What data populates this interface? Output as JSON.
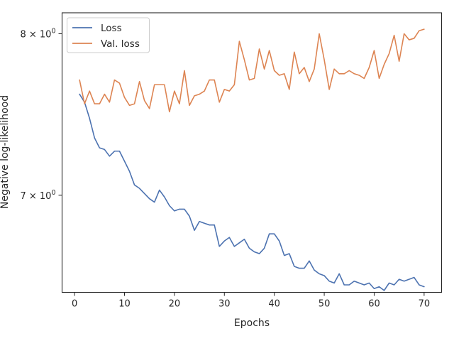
{
  "chart_data": {
    "type": "line",
    "title": "",
    "xlabel": "Epochs",
    "ylabel": "Negative log-likelihood",
    "yscale": "log",
    "xlim": [
      -2.5,
      73.5
    ],
    "ylim": [
      6.46,
      8.14
    ],
    "xticks": [
      0,
      10,
      20,
      30,
      40,
      50,
      60,
      70
    ],
    "xtick_labels": [
      "0",
      "10",
      "20",
      "30",
      "40",
      "50",
      "60",
      "70"
    ],
    "yticks": [
      7,
      8
    ],
    "ytick_labels": [
      "7 × 10",
      "8 × 10"
    ],
    "ytick_exponent": "0",
    "legend_position": "upper-left",
    "grid": false,
    "series": [
      {
        "name": "Loss",
        "color": "#4c72b0",
        "x": [
          1,
          2,
          3,
          4,
          5,
          6,
          7,
          8,
          9,
          10,
          11,
          12,
          13,
          14,
          15,
          16,
          17,
          18,
          19,
          20,
          21,
          22,
          23,
          24,
          25,
          26,
          27,
          28,
          29,
          30,
          31,
          32,
          33,
          34,
          35,
          36,
          37,
          38,
          39,
          40,
          41,
          42,
          43,
          44,
          45,
          46,
          47,
          48,
          49,
          50,
          51,
          52,
          53,
          54,
          55,
          56,
          57,
          58,
          59,
          60,
          61,
          62,
          63,
          64,
          65,
          66,
          67,
          68,
          69,
          70
        ],
        "values": [
          7.61,
          7.56,
          7.46,
          7.34,
          7.28,
          7.27,
          7.23,
          7.26,
          7.26,
          7.2,
          7.14,
          7.06,
          7.04,
          7.01,
          6.98,
          6.96,
          7.03,
          6.99,
          6.94,
          6.91,
          6.92,
          6.92,
          6.88,
          6.8,
          6.85,
          6.84,
          6.83,
          6.83,
          6.71,
          6.74,
          6.76,
          6.71,
          6.73,
          6.75,
          6.7,
          6.68,
          6.67,
          6.7,
          6.78,
          6.78,
          6.74,
          6.66,
          6.67,
          6.6,
          6.59,
          6.59,
          6.63,
          6.58,
          6.56,
          6.55,
          6.52,
          6.51,
          6.56,
          6.5,
          6.5,
          6.52,
          6.51,
          6.5,
          6.51,
          6.48,
          6.49,
          6.47,
          6.51,
          6.5,
          6.53,
          6.52,
          6.53,
          6.54,
          6.5,
          6.49
        ]
      },
      {
        "name": "Val. loss",
        "color": "#dd8452",
        "x": [
          1,
          2,
          3,
          4,
          5,
          6,
          7,
          8,
          9,
          10,
          11,
          12,
          13,
          14,
          15,
          16,
          17,
          18,
          19,
          20,
          21,
          22,
          23,
          24,
          25,
          26,
          27,
          28,
          29,
          30,
          31,
          32,
          33,
          34,
          35,
          36,
          37,
          38,
          39,
          40,
          41,
          42,
          43,
          44,
          45,
          46,
          47,
          48,
          49,
          50,
          51,
          52,
          53,
          54,
          55,
          56,
          57,
          58,
          59,
          60,
          61,
          62,
          63,
          64,
          65,
          66,
          67,
          68,
          69,
          70
        ],
        "values": [
          7.7,
          7.55,
          7.63,
          7.55,
          7.55,
          7.61,
          7.56,
          7.7,
          7.68,
          7.59,
          7.54,
          7.55,
          7.69,
          7.57,
          7.52,
          7.67,
          7.67,
          7.67,
          7.5,
          7.63,
          7.55,
          7.76,
          7.54,
          7.6,
          7.61,
          7.63,
          7.7,
          7.7,
          7.56,
          7.64,
          7.63,
          7.67,
          7.95,
          7.83,
          7.7,
          7.71,
          7.9,
          7.77,
          7.89,
          7.76,
          7.73,
          7.74,
          7.64,
          7.88,
          7.74,
          7.78,
          7.69,
          7.77,
          8.0,
          7.83,
          7.64,
          7.77,
          7.74,
          7.74,
          7.76,
          7.74,
          7.73,
          7.71,
          7.78,
          7.89,
          7.71,
          7.8,
          7.87,
          7.99,
          7.82,
          8.0,
          7.96,
          7.97,
          8.02,
          8.03
        ]
      }
    ]
  }
}
